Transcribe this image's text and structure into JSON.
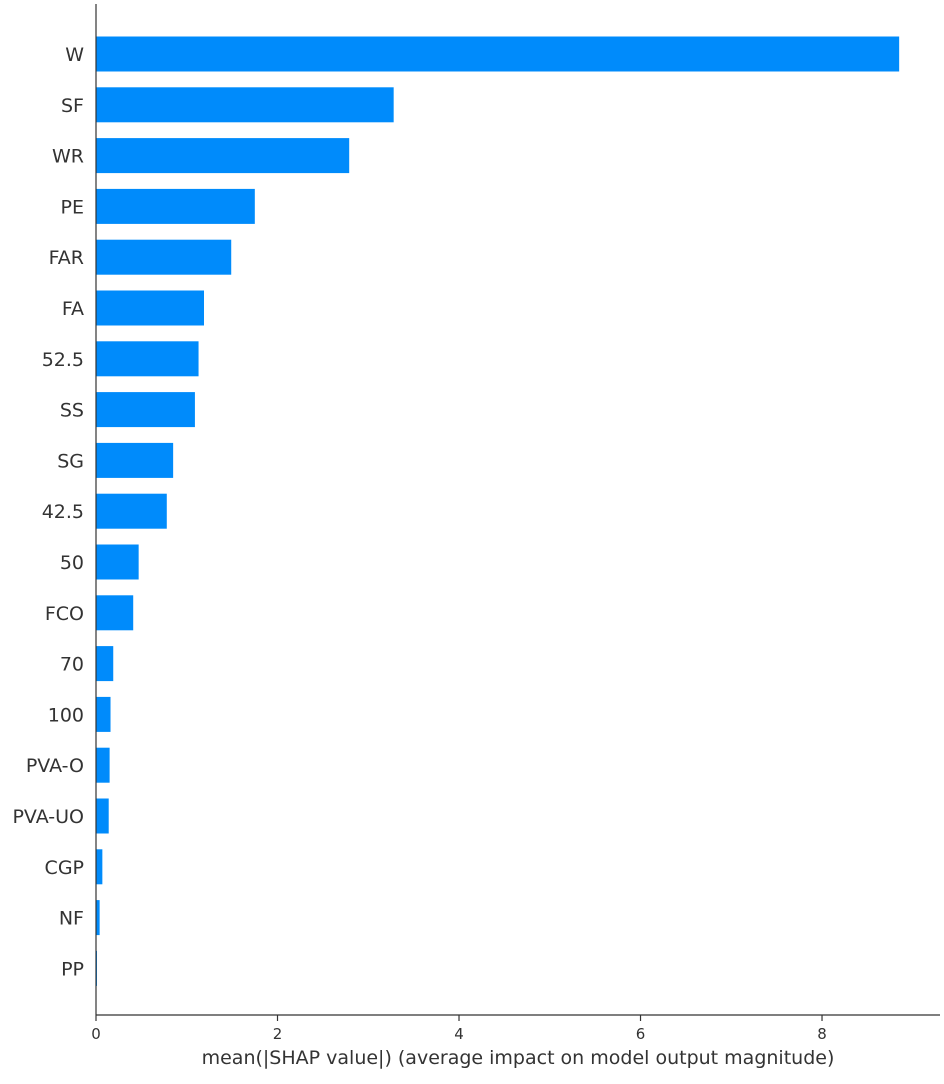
{
  "chart_data": {
    "type": "bar",
    "orientation": "horizontal",
    "categories": [
      "W",
      "SF",
      "WR",
      "PE",
      "FAR",
      "FA",
      "52.5",
      "SS",
      "SG",
      "42.5",
      "50",
      "FCO",
      "70",
      "100",
      "PVA-O",
      "PVA-UO",
      "CGP",
      "NF",
      "PP"
    ],
    "values": [
      8.85,
      3.28,
      2.79,
      1.75,
      1.49,
      1.19,
      1.13,
      1.09,
      0.85,
      0.78,
      0.47,
      0.41,
      0.19,
      0.16,
      0.15,
      0.14,
      0.07,
      0.04,
      0.01
    ],
    "xlabel": "mean(|SHAP value|) (average impact on model output magnitude)",
    "ylabel": "",
    "xlim": [
      0,
      9.3
    ],
    "xticks": [
      0,
      2,
      4,
      6,
      8
    ],
    "xtick_labels": [
      "0",
      "2",
      "4",
      "6",
      "8"
    ],
    "grid": false,
    "bar_color": "#008bfb",
    "axis_color": "#333333"
  }
}
